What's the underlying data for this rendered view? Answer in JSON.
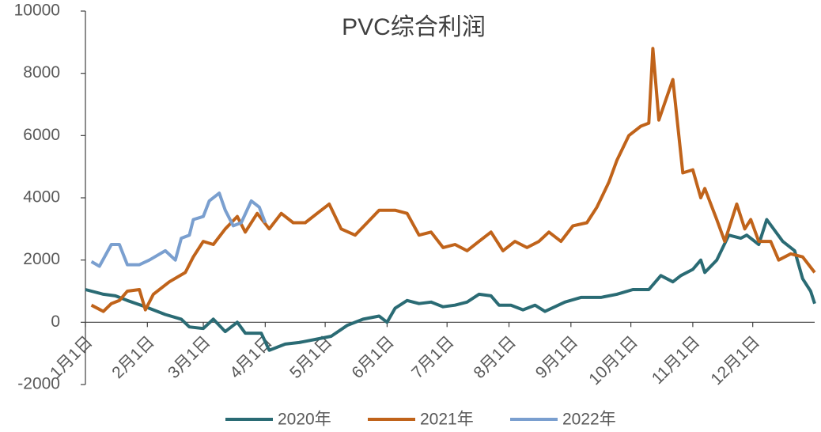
{
  "chart_data": {
    "type": "line",
    "title": "PVC综合利润",
    "xlim": [
      0,
      365
    ],
    "xticks": [
      {
        "value": 0,
        "label": "1月1日"
      },
      {
        "value": 31,
        "label": "2月1日"
      },
      {
        "value": 59,
        "label": "3月1日"
      },
      {
        "value": 90,
        "label": "4月1日"
      },
      {
        "value": 120,
        "label": "5月1日"
      },
      {
        "value": 151,
        "label": "6月1日"
      },
      {
        "value": 181,
        "label": "7月1日"
      },
      {
        "value": 212,
        "label": "8月1日"
      },
      {
        "value": 243,
        "label": "9月1日"
      },
      {
        "value": 273,
        "label": "10月1日"
      },
      {
        "value": 304,
        "label": "11月1日"
      },
      {
        "value": 334,
        "label": "12月1日"
      }
    ],
    "ylim": [
      -2000,
      10000
    ],
    "yticks": [
      -2000,
      0,
      2000,
      4000,
      6000,
      8000,
      10000
    ],
    "series": [
      {
        "name": "2020年",
        "color": "#2a6b74",
        "x": [
          0,
          9,
          15,
          21,
          30,
          40,
          48,
          52,
          59,
          64,
          70,
          76,
          80,
          88,
          92,
          100,
          107,
          115,
          123,
          131,
          139,
          147,
          151,
          155,
          161,
          167,
          173,
          179,
          185,
          191,
          197,
          203,
          207,
          213,
          219,
          225,
          230,
          235,
          240,
          248,
          258,
          266,
          274,
          282,
          288,
          294,
          298,
          304,
          308,
          310,
          316,
          322,
          328,
          331,
          337,
          341,
          349,
          355,
          359,
          363,
          365
        ],
        "values": [
          1050,
          900,
          850,
          700,
          500,
          250,
          100,
          -150,
          -200,
          100,
          -300,
          0,
          -350,
          -350,
          -900,
          -700,
          -650,
          -550,
          -450,
          -100,
          100,
          200,
          0,
          450,
          700,
          600,
          650,
          500,
          550,
          650,
          900,
          850,
          550,
          550,
          400,
          550,
          350,
          500,
          650,
          800,
          800,
          900,
          1050,
          1050,
          1500,
          1300,
          1500,
          1700,
          2000,
          1600,
          2000,
          2800,
          2700,
          2800,
          2500,
          3300,
          2600,
          2300,
          1400,
          1000,
          600
        ]
      },
      {
        "name": "2021年",
        "color": "#c0631a",
        "x": [
          3,
          9,
          13,
          17,
          21,
          27,
          30,
          34,
          42,
          50,
          54,
          59,
          64,
          70,
          76,
          80,
          86,
          92,
          98,
          104,
          110,
          116,
          122,
          128,
          135,
          141,
          147,
          155,
          161,
          167,
          173,
          179,
          185,
          191,
          197,
          203,
          209,
          215,
          221,
          227,
          232,
          238,
          244,
          251,
          256,
          262,
          266,
          272,
          278,
          282,
          284,
          287,
          294,
          299,
          304,
          308,
          310,
          316,
          320,
          326,
          330,
          333,
          337,
          343,
          347,
          353,
          359,
          365
        ],
        "values": [
          550,
          350,
          600,
          700,
          1000,
          1050,
          400,
          900,
          1300,
          1600,
          2100,
          2600,
          2500,
          3000,
          3400,
          2900,
          3500,
          3000,
          3500,
          3200,
          3200,
          3500,
          3800,
          3000,
          2800,
          3200,
          3600,
          3600,
          3500,
          2800,
          2900,
          2400,
          2500,
          2300,
          2600,
          2900,
          2300,
          2600,
          2400,
          2600,
          2900,
          2600,
          3100,
          3200,
          3700,
          4500,
          5200,
          6000,
          6300,
          6400,
          8800,
          6500,
          7800,
          4800,
          4900,
          4000,
          4300,
          3300,
          2600,
          3800,
          3000,
          3300,
          2600,
          2600,
          2000,
          2200,
          2100,
          1600
        ]
      },
      {
        "name": "2022年",
        "color": "#7a9fcf",
        "x": [
          3,
          7,
          13,
          17,
          21,
          27,
          32,
          40,
          45,
          48,
          52,
          54,
          59,
          62,
          67,
          70,
          74,
          78,
          83,
          87,
          90
        ],
        "values": [
          1950,
          1800,
          2500,
          2500,
          1850,
          1850,
          2000,
          2300,
          2000,
          2700,
          2800,
          3300,
          3400,
          3900,
          4150,
          3600,
          3100,
          3200,
          3900,
          3700,
          3200
        ]
      }
    ]
  }
}
